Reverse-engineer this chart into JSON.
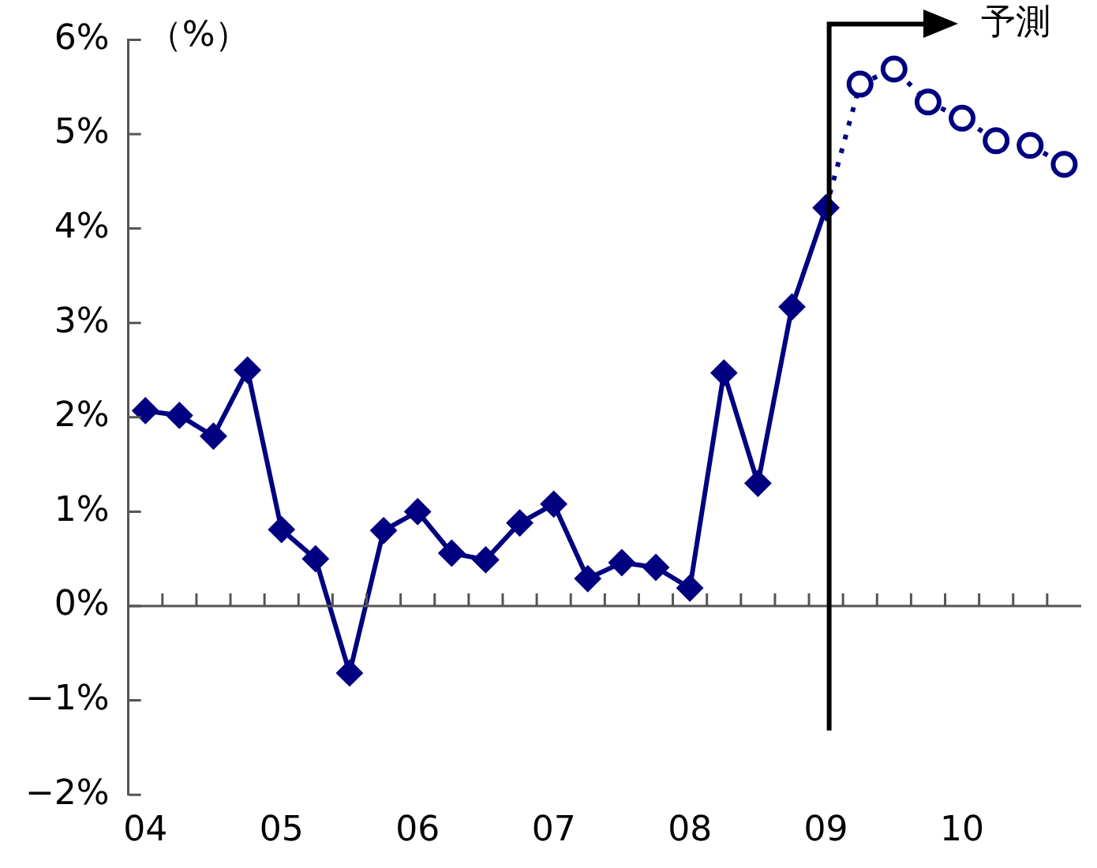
{
  "chart_data": {
    "type": "line",
    "ylabel": "（%）",
    "categories": [
      "04",
      null,
      null,
      null,
      "05",
      null,
      null,
      null,
      "06",
      null,
      null,
      null,
      "07",
      null,
      null,
      null,
      "08",
      null,
      null,
      null,
      "09",
      null,
      null,
      null,
      "10",
      null,
      null,
      null
    ],
    "series": [
      {
        "color": "#000080",
        "marker": "diamond",
        "line_style": "solid",
        "values": [
          2.07,
          2.02,
          1.8,
          2.5,
          0.81,
          0.5,
          -0.71,
          0.8,
          1.0,
          0.56,
          0.49,
          0.88,
          1.08,
          0.29,
          0.46,
          0.41,
          0.19,
          2.47,
          1.3,
          3.17,
          4.22,
          null,
          null,
          null,
          null,
          null,
          null,
          null
        ]
      },
      {
        "color": "#000080",
        "marker": "circle",
        "line_style": "dotted",
        "values": [
          null,
          null,
          null,
          null,
          null,
          null,
          null,
          null,
          null,
          null,
          null,
          null,
          null,
          null,
          null,
          null,
          null,
          null,
          null,
          null,
          4.22,
          5.53,
          5.69,
          5.34,
          5.17,
          4.93,
          4.88,
          4.68
        ]
      }
    ],
    "ylim": [
      -2,
      6
    ],
    "yticks": [
      {
        "value": -2,
        "label": "−2%"
      },
      {
        "value": -1,
        "label": "−1%"
      },
      {
        "value": 0,
        "label": "0%"
      },
      {
        "value": 1,
        "label": "1%"
      },
      {
        "value": 2,
        "label": "2%"
      },
      {
        "value": 3,
        "label": "3%"
      },
      {
        "value": 4,
        "label": "4%"
      },
      {
        "value": 5,
        "label": "5%"
      },
      {
        "value": 6,
        "label": "6%"
      }
    ],
    "grid": false,
    "legend": false,
    "ref_lines": [
      {
        "axis": "y",
        "value": 0,
        "color": "#555555"
      },
      {
        "axis": "x",
        "value": "09",
        "label": "予測",
        "color": "#000000"
      }
    ]
  }
}
